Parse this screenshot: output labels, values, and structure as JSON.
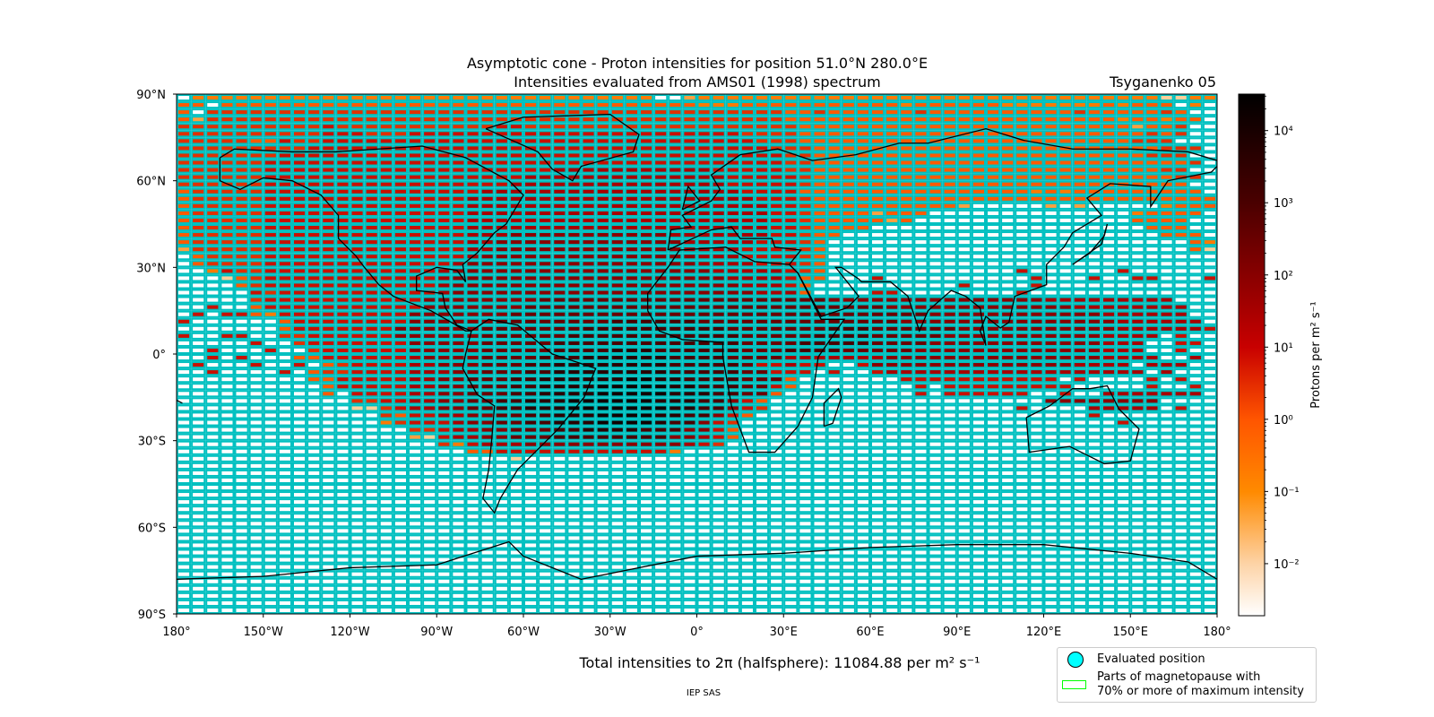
{
  "chart_data": {
    "type": "heatmap",
    "title": "Asymptotic cone - Proton intensities for position 51.0°N 280.0°E",
    "subtitle": "Intensities evaluated from AMS01 (1998) spectrum",
    "model_label": "Tsyganenko 05",
    "x_ticks": [
      "180°",
      "150°W",
      "120°W",
      "90°W",
      "60°W",
      "30°W",
      "0°",
      "30°E",
      "60°E",
      "90°E",
      "120°E",
      "150°E",
      "180°"
    ],
    "y_ticks": [
      "90°N",
      "60°N",
      "30°N",
      "0°",
      "30°S",
      "60°S",
      "90°S"
    ],
    "xlim": [
      -180,
      180
    ],
    "ylim": [
      -90,
      90
    ],
    "cell_size_deg": [
      5,
      2.5
    ],
    "grid_color": "#00c0c0",
    "colorbar": {
      "label": "Protons per m² s⁻¹",
      "scale": "log",
      "range": [
        0.0019,
        32000
      ],
      "ticks": [
        {
          "value": 10000,
          "label": "10⁴"
        },
        {
          "value": 1000,
          "label": "10³"
        },
        {
          "value": 100,
          "label": "10²"
        },
        {
          "value": 10,
          "label": "10¹"
        },
        {
          "value": 1,
          "label": "10⁰"
        },
        {
          "value": 0.1,
          "label": "10⁻¹"
        },
        {
          "value": 0.01,
          "label": "10⁻²"
        }
      ],
      "colormap_stops": [
        {
          "value": 0.0019,
          "color": "#ffffff"
        },
        {
          "value": 0.01,
          "color": "#fdd3a6"
        },
        {
          "value": 0.1,
          "color": "#ff8a00"
        },
        {
          "value": 1,
          "color": "#ff5500"
        },
        {
          "value": 10,
          "color": "#c80000"
        },
        {
          "value": 100,
          "color": "#880000"
        },
        {
          "value": 1000,
          "color": "#4a0000"
        },
        {
          "value": 10000,
          "color": "#180000"
        },
        {
          "value": 32000,
          "color": "#000000"
        }
      ]
    },
    "levels": {
      "a": {
        "value": 0.01,
        "color": "#fdd09a"
      },
      "b": {
        "value": 0.05,
        "color": "#fea040"
      },
      "c": {
        "value": 0.2,
        "color": "#ff7a00"
      },
      "d": {
        "value": 0.6,
        "color": "#ff5a00"
      },
      "e": {
        "value": 2,
        "color": "#e03000"
      },
      "f": {
        "value": 8,
        "color": "#c81000"
      },
      "g": {
        "value": 30,
        "color": "#a80000"
      },
      "h": {
        "value": 100,
        "color": "#8a0000"
      },
      "i": {
        "value": 300,
        "color": "#6a0000"
      },
      "j": {
        "value": 1000,
        "color": "#4a0000"
      },
      "k": {
        "value": 3000,
        "color": "#2a0000"
      },
      "l": {
        "value": 10000,
        "color": "#100000"
      }
    },
    "rows_north_to_south": [
      ".cccccccccccccccccccccccccccccccc..bccccccccccccccccccccccccccccccccaacc",
      "dd.dddddddddddddddddddddddddddddddddcccdddddddddddcddddddcccccccdcddd.c",
      "d.eeeeeeeeeeeeeeeeeeeeeeeeeeeeeeeeeeeeeeeeddeddddddeddddddddddeddddded.",
      "dbeeeeeeeeeeeeeeeeeeeeeeeeeeeeeeeeeeeeeeeedddddddddddddddddddddddcddcdd",
      "eeeeeeeeeefeeeeeeeeeeeffeeeeeeeeeeeeeeeeeeedddddddddddddddddddddddbdde",
      "eeeeeeeeeefffeeefffffffffffffffffffffffeeeeddddddddddddddddddddddddede",
      "eeeeeddfeeffffffffffffffffffffffffffffffeeedddddddddddddddddddddddeee",
      "eeeeeeeeeffffffffffffffffffffffffffffffffeeeddddddddddddddddddddddddeee",
      "eeeeeeefffffffffffffffffffffffffffffffffffeedddddddddddddddddddddddeee",
      "eeeeeeffffffffffffffffffffffffffffffffffffeedddddddddddddddddddddddddde",
      "eeeeeeffffffffffffffffffffgggggggggggfffffeeddddddddddddddddddddddddee",
      "eeeeeeffffffffffffffffffggggggggggggggfffffedddddddddddddddddddddddddee",
      "eeeeeefffffffffffffffffgggggggggggggggfffffedddddddddddddddddddddddddd",
      "deeeeefffffffffffffffggggggggggggggggggffffddddddddddddddddcdcddddddddd",
      "deeeeeffffffffffffffggggggggggggggggggggfffedddddddddddddddddddddddddddd",
      "deeeeeffffffffffffffgggggggggggggggggggggffeddddddddddb.....b.b.....cddd",
      "deeeeeffffffffffffffgggggggggggggggggggggffeddddbddd..............cdddd",
      "deeeeeffffffffffffffgggggggggggggggggggggffedddddbd...............dddd",
      "deeeeeffffffffffffffgggggggggggggggggggggffedddd...................ddd",
      "deeeeeffffffffffffffggghhhhhhhhhhhgggggggffedd......................ddd",
      "deeeeeffffffffffffffgghhhhhhhhhhhhhgggggfffed.........................dc",
      "beeeeeffffffffffffffgghhhhhhhhhhhhhggggffffed.........................da",
      ".deeeeffffffffffffffghhhhhhhhhhhhhhhgggffffed.........................",
      ".deeeefffffffffffffghhhhhhhhhhhhhhhhggggfffed...........................",
      "..cfeeffffffffffffghhhhhhhhhhhhhhhhhhgggggfed.............f......f......",
      "...adeffffffffffffghhhhhhhhhhhhhhhhhhhggggfdd...f..........f...f..ff...f.",
      "....deffffffffffffghhhhhhhhhhhhhhhhhhhhgggfd..........f....f..........",
      ".....fefffffffffffghhhhhhhhhhhhhhhhhhhhhgggd....ff........f.............",
      ".....efffffffffffhhhhhhhhiiiiiiiiiiiiiiiiiiiihhhhhhhhhhhhhhhggggggggg....",
      "..f..dfffffffffffhhhhhhhiiiiiiiiiiiiiiiiiiiiiiiiihhhhhhhhhhhhhgggggggg..",
      ".f.ffdcfffffffffhhhhhhhiiiiiiiiiiiiiiiiiiiiiiiiiiiiihhhhhhhhhhhhgggggg.",
      "f......dffffffffhhhhhhiiiiiiiijjjjjjiiiiiiiiiiiiiihhhhhhhhhhhhhhhgggggg.",
      ".......dfffffffhhhhhhiiiiiiijjjjjjjjjjiiiiiiijjjiiiiiihhhhhhhhhhhggggggf",
      "f..ff..eeffffffhhhhhhiiiiiijjjjjjjjjjjjiiiiijjjjiiiiihhhhhhhhhhhgggg.f.",
      ".....f..efffffffhhhhhiiiiijjjjjjjjjjjjjiiiijjjjjiiiihhhhhhhhhhhhggg..ff",
      "..f...f..effffffhhhhhiiiiijjjjkkkjjjjjjiiijjjjiiiiihhhhhhhhhhhhhggg..f.",
      "..f.f...ddffffffghhhhiiiijjjkkkkkkjjjjiiiiggggggghhhhhhhhhhhhhhhgggg..g",
      ".f...f..f.deffffgghhhiiijjkkkkkkkkjjjjjiffgff..fhhhhhhhhhhhhhhgggg.ggg..",
      "..f....f.deeffffggghhiiijjkkkkkkkkjjjjjiifff.f..fgggggggggggggggggg.g.",
      ".........ddfffffgghhiiijjkkkkkkllkkjjjjiiid.......fffffffffff.f....f.f",
      "..........dfffffgghhiiijjkkkklllllkkjjjiifd........f.fffffffff.....f..f",
      "..........d.ffffgghhiiijjkkkklllllkkkjjiid.........f.ffffff..f..ggggggg..",
      "............eeffgghhiijjkkkllllllkkkjjhfd...................hhhhhhhh...",
      "............aaefgghhiijjkkklllllllkkjjhfe.................f....ggggg.f..",
      "..............edffgghhiijjkkkllllkkjjhfd.......................f........",
      "..............cefffghhiijjkkkllllkjjhfe..........................f.....",
      "................eefgghhiiijjkkkkjjjhhfd",
      "................bafgghhiiijjjjjjjjhhgfd",
      "..................ecfggghhhhhhhhhhhgfe",
      "....................ddffffffffffffc",
      ".......................a"
    ]
  },
  "footer": {
    "total_intensity": "Total intensities to 2π (halfsphere): 11084.88 per m² s⁻¹",
    "credit": "IEP SAS"
  },
  "legend": {
    "items": [
      {
        "label": "Evaluated position",
        "icon": "cyan-circle",
        "color": "#00ffff"
      },
      {
        "label": "Parts of magnetopause with\n70% or more of maximum intensity",
        "icon": "green-rectangle",
        "color": "#00ff00"
      }
    ],
    "item_0_label": "Evaluated position",
    "item_1_label_line1": "Parts of magnetopause with",
    "item_1_label_line2": "70% or more of maximum intensity"
  }
}
